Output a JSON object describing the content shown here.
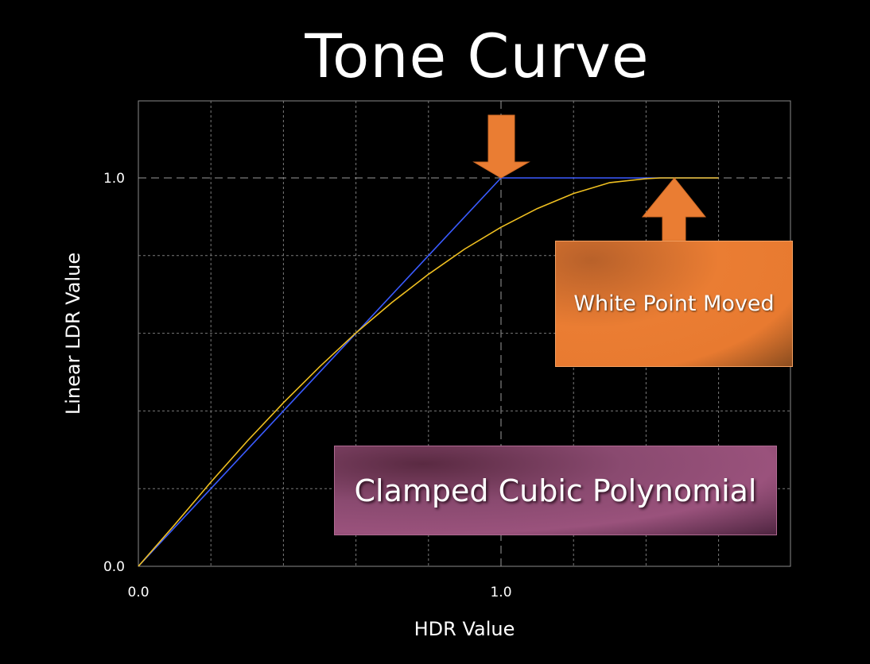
{
  "chart_data": {
    "type": "line",
    "title": "Tone Curve",
    "xlabel": "HDR Value",
    "ylabel": "Linear LDR Value",
    "xlim": [
      0,
      1.8
    ],
    "ylim": [
      0,
      1.2
    ],
    "x_ticks": [
      {
        "value": 0,
        "label": "0.0"
      },
      {
        "value": 1,
        "label": "1.0"
      }
    ],
    "y_ticks": [
      {
        "value": 0,
        "label": "0.0"
      },
      {
        "value": 1,
        "label": "1.0"
      }
    ],
    "grid": true,
    "series": [
      {
        "color": "#3a5bff",
        "x": [
          0,
          1.0,
          1.6
        ],
        "y": [
          0,
          1.0,
          1.0
        ]
      },
      {
        "color": "#f0c020",
        "x": [
          0,
          0.1,
          0.2,
          0.3,
          0.4,
          0.5,
          0.6,
          0.7,
          0.8,
          0.9,
          1.0,
          1.1,
          1.2,
          1.3,
          1.4,
          1.44,
          1.5,
          1.6
        ],
        "y": [
          0,
          0.107,
          0.217,
          0.322,
          0.421,
          0.514,
          0.601,
          0.68,
          0.752,
          0.817,
          0.873,
          0.921,
          0.96,
          0.988,
          0.998,
          1.0,
          1.0,
          1.0
        ]
      }
    ],
    "annotations": [
      {
        "text": "White Point Moved",
        "color": "#e87a30"
      },
      {
        "text": "Clamped Cubic Polynomial",
        "color": "#8a4a70"
      }
    ]
  }
}
